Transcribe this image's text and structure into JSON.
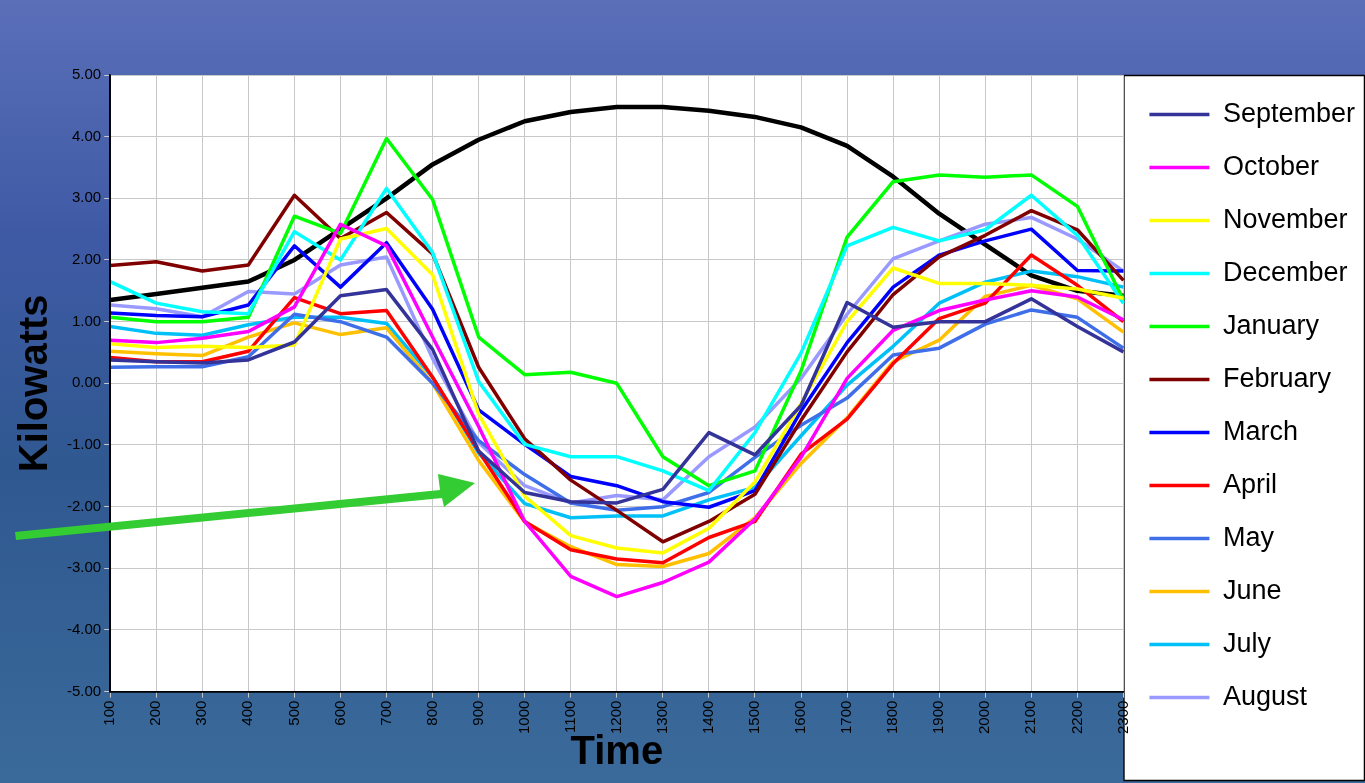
{
  "chart_data": {
    "type": "line",
    "xlabel": "Time",
    "ylabel": "Kilowatts",
    "categories": [
      "100",
      "200",
      "300",
      "400",
      "500",
      "600",
      "700",
      "800",
      "900",
      "1000",
      "1100",
      "1200",
      "1300",
      "1400",
      "1500",
      "1600",
      "1700",
      "1800",
      "1900",
      "2000",
      "2100",
      "2200",
      "2300"
    ],
    "ylim": [
      -5,
      5
    ],
    "yticks": [
      {
        "value": -5,
        "label": "-5.00"
      },
      {
        "value": -4,
        "label": "-4.00"
      },
      {
        "value": -3,
        "label": "-3.00"
      },
      {
        "value": -2,
        "label": "-2.00"
      },
      {
        "value": -1,
        "label": "-1.00"
      },
      {
        "value": 0,
        "label": "0.00"
      },
      {
        "value": 1,
        "label": "1.00"
      },
      {
        "value": 2,
        "label": "2.00"
      },
      {
        "value": 3,
        "label": "3.00"
      },
      {
        "value": 4,
        "label": "4.00"
      },
      {
        "value": 5,
        "label": "5.00"
      }
    ],
    "grid": true,
    "legend": "right",
    "marker": "none",
    "line_style": "solid",
    "series": [
      {
        "name": "September",
        "color": "#333399",
        "values": [
          0.38,
          0.35,
          0.33,
          0.38,
          0.67,
          1.42,
          1.52,
          0.55,
          -1.1,
          -1.77,
          -1.92,
          -1.94,
          -1.72,
          -0.8,
          -1.16,
          -0.36,
          1.31,
          0.91,
          1.0,
          1.0,
          1.37,
          0.92,
          0.51
        ]
      },
      {
        "name": "October",
        "color": "#ff00ff",
        "values": [
          0.7,
          0.66,
          0.73,
          0.84,
          1.24,
          2.58,
          2.23,
          0.75,
          -0.7,
          -2.24,
          -3.13,
          -3.46,
          -3.23,
          -2.9,
          -2.2,
          -1.2,
          0.08,
          0.86,
          1.18,
          1.35,
          1.5,
          1.4,
          1.03
        ]
      },
      {
        "name": "November",
        "color": "#ffff00",
        "values": [
          0.64,
          0.58,
          0.6,
          0.58,
          0.62,
          2.34,
          2.51,
          1.76,
          -0.5,
          -1.83,
          -2.47,
          -2.67,
          -2.75,
          -2.35,
          -1.6,
          -0.33,
          1.0,
          1.87,
          1.62,
          1.62,
          1.59,
          1.53,
          1.38
        ]
      },
      {
        "name": "December",
        "color": "#00ffff",
        "values": [
          1.65,
          1.3,
          1.16,
          1.13,
          2.46,
          2.0,
          3.16,
          2.12,
          0.03,
          -0.99,
          -1.19,
          -1.19,
          -1.42,
          -1.74,
          -0.8,
          0.49,
          2.23,
          2.53,
          2.31,
          2.49,
          3.05,
          2.4,
          1.3
        ]
      },
      {
        "name": "January",
        "color": "#00ff00",
        "values": [
          1.07,
          1.0,
          1.0,
          1.07,
          2.71,
          2.43,
          3.97,
          2.98,
          0.75,
          0.14,
          0.18,
          0.0,
          -1.19,
          -1.66,
          -1.42,
          0.2,
          2.37,
          3.27,
          3.38,
          3.34,
          3.38,
          2.87,
          1.35
        ]
      },
      {
        "name": "February",
        "color": "#800000",
        "values": [
          1.91,
          1.97,
          1.82,
          1.92,
          3.05,
          2.35,
          2.77,
          2.1,
          0.26,
          -0.9,
          -1.57,
          -2.06,
          -2.57,
          -2.24,
          -1.8,
          -0.6,
          0.51,
          1.44,
          2.05,
          2.4,
          2.8,
          2.49,
          1.67
        ]
      },
      {
        "name": "March",
        "color": "#0000ff",
        "values": [
          1.14,
          1.1,
          1.08,
          1.27,
          2.23,
          1.56,
          2.28,
          1.2,
          -0.43,
          -0.99,
          -1.51,
          -1.66,
          -1.92,
          -2.01,
          -1.74,
          -0.45,
          0.66,
          1.56,
          2.08,
          2.31,
          2.5,
          1.83,
          1.82
        ]
      },
      {
        "name": "April",
        "color": "#ff0000",
        "values": [
          0.42,
          0.35,
          0.35,
          0.52,
          1.39,
          1.13,
          1.18,
          0.1,
          -1.1,
          -2.24,
          -2.7,
          -2.85,
          -2.91,
          -2.5,
          -2.24,
          -1.15,
          -0.58,
          0.32,
          1.05,
          1.3,
          2.08,
          1.59,
          1.0
        ]
      },
      {
        "name": "May",
        "color": "#3f6fe8",
        "values": [
          0.26,
          0.27,
          0.27,
          0.43,
          1.12,
          1.0,
          0.75,
          0.0,
          -0.93,
          -1.48,
          -1.94,
          -2.06,
          -2.0,
          -1.77,
          -1.2,
          -0.68,
          -0.24,
          0.46,
          0.57,
          0.96,
          1.19,
          1.07,
          0.57
        ]
      },
      {
        "name": "June",
        "color": "#ffc000",
        "values": [
          0.52,
          0.48,
          0.45,
          0.75,
          0.98,
          0.79,
          0.9,
          0.0,
          -1.25,
          -2.25,
          -2.65,
          -2.94,
          -2.97,
          -2.76,
          -2.18,
          -1.3,
          -0.56,
          0.35,
          0.7,
          1.41,
          1.59,
          1.37,
          0.83
        ]
      },
      {
        "name": "July",
        "color": "#00c0f8",
        "values": [
          0.92,
          0.81,
          0.78,
          0.95,
          1.07,
          1.07,
          0.97,
          0.1,
          -1.13,
          -1.95,
          -2.18,
          -2.15,
          -2.15,
          -1.89,
          -1.69,
          -0.85,
          -0.03,
          0.6,
          1.3,
          1.64,
          1.82,
          1.73,
          1.56
        ]
      },
      {
        "name": "August",
        "color": "#9999ff",
        "values": [
          1.27,
          1.21,
          1.08,
          1.49,
          1.45,
          1.92,
          2.05,
          0.4,
          -0.96,
          -1.66,
          -1.94,
          -1.82,
          -1.89,
          -1.19,
          -0.71,
          0.08,
          1.12,
          2.02,
          2.31,
          2.58,
          2.69,
          2.34,
          1.82
        ]
      },
      {
        "color": "#000000",
        "values": [
          1.35,
          1.45,
          1.55,
          1.65,
          2.0,
          2.5,
          3.0,
          3.55,
          3.95,
          4.25,
          4.4,
          4.48,
          4.48,
          4.42,
          4.32,
          4.15,
          3.85,
          3.35,
          2.75,
          2.25,
          1.75,
          1.5,
          1.42
        ]
      }
    ]
  }
}
